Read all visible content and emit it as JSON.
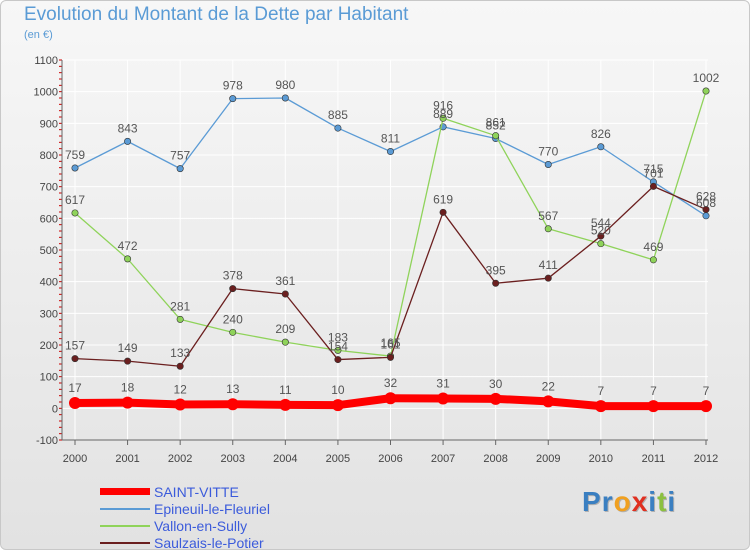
{
  "colors": {
    "title": "#5a9bd5",
    "axis": "#666666",
    "grid": "#ffffff",
    "tick_marks": "#cc0000",
    "legend_text": "#3b5bdb"
  },
  "brand": {
    "letters": [
      "P",
      "r",
      "o",
      "x",
      "i",
      "t",
      "i"
    ],
    "colors": [
      "#3a7fc1",
      "#3a7fc1",
      "#f0a020",
      "#e03020",
      "#3a7fc1",
      "#8cc040",
      "#3a7fc1"
    ]
  },
  "chart_data": {
    "type": "line",
    "title": "Evolution du Montant de la Dette par Habitant",
    "subtitle": "(en €)",
    "xlabel": "",
    "ylabel": "",
    "x": [
      "2000",
      "2001",
      "2002",
      "2003",
      "2004",
      "2005",
      "2006",
      "2007",
      "2008",
      "2009",
      "2010",
      "2011",
      "2012"
    ],
    "ylim": [
      -100,
      1100
    ],
    "yticks": [
      "-100",
      "0",
      "100",
      "200",
      "300",
      "400",
      "500",
      "600",
      "700",
      "800",
      "900",
      "1000",
      "1100"
    ],
    "grid": true,
    "legend_position": "bottom-left",
    "series": [
      {
        "name": "SAINT-VITTE",
        "color": "#ff0000",
        "values": [
          17,
          18,
          12,
          13,
          11,
          10,
          32,
          31,
          30,
          22,
          7,
          7,
          7
        ],
        "labels": [
          "17",
          "18",
          "12",
          "13",
          "11",
          "10",
          "32",
          "31",
          "30",
          "22",
          "7",
          "7",
          "7"
        ]
      },
      {
        "name": "Epineuil-le-Fleuriel",
        "color": "#5b9bd5",
        "values": [
          759,
          843,
          757,
          978,
          980,
          885,
          811,
          889,
          852,
          770,
          826,
          715,
          608
        ],
        "labels": [
          "759",
          "843",
          "757",
          "978",
          "980",
          "885",
          "811",
          "889",
          "852",
          "770",
          "826",
          "715",
          "608"
        ]
      },
      {
        "name": "Vallon-en-Sully",
        "color": "#8fd35a",
        "values": [
          617,
          472,
          281,
          240,
          209,
          183,
          165,
          916,
          861,
          567,
          520,
          469,
          1002
        ],
        "labels": [
          "617",
          "472",
          "281",
          "240",
          "209",
          "183",
          "165",
          "916",
          "861",
          "567",
          "520",
          "469",
          "1002"
        ]
      },
      {
        "name": "Saulzais-le-Potier",
        "color": "#6b1f1f",
        "values": [
          157,
          149,
          133,
          378,
          361,
          154,
          161,
          619,
          395,
          411,
          544,
          701,
          628
        ],
        "labels": [
          "157",
          "149",
          "133",
          "378",
          "361",
          "154",
          "161",
          "619",
          "395",
          "411",
          "544",
          "701",
          "628"
        ]
      }
    ]
  }
}
